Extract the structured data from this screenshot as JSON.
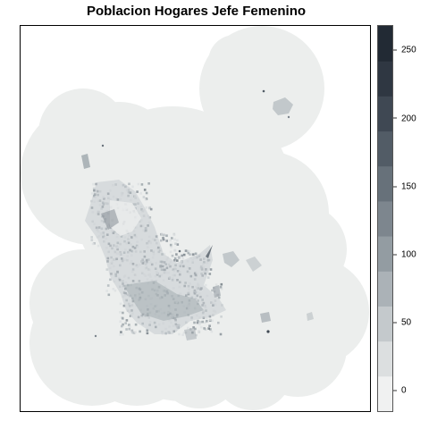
{
  "title": "Poblacion Hogares Jefe Femenino",
  "legend": {
    "min": -15,
    "max": 268,
    "ticks": [
      {
        "value": 0,
        "label": "0"
      },
      {
        "value": 50,
        "label": "50"
      },
      {
        "value": 100,
        "label": "100"
      },
      {
        "value": 150,
        "label": "150"
      },
      {
        "value": 200,
        "label": "200"
      },
      {
        "value": 250,
        "label": "250"
      }
    ],
    "colors": [
      "#f0f1f1",
      "#dcdfe0",
      "#c4c9cc",
      "#abb2b7",
      "#939ca2",
      "#7d868e",
      "#67717a",
      "#525c66",
      "#3f4853",
      "#2f3742",
      "#222a34"
    ]
  },
  "map": {
    "background_color": "#eceeed",
    "description_layers": [
      "coverage-area",
      "urban-hexbins"
    ]
  }
}
